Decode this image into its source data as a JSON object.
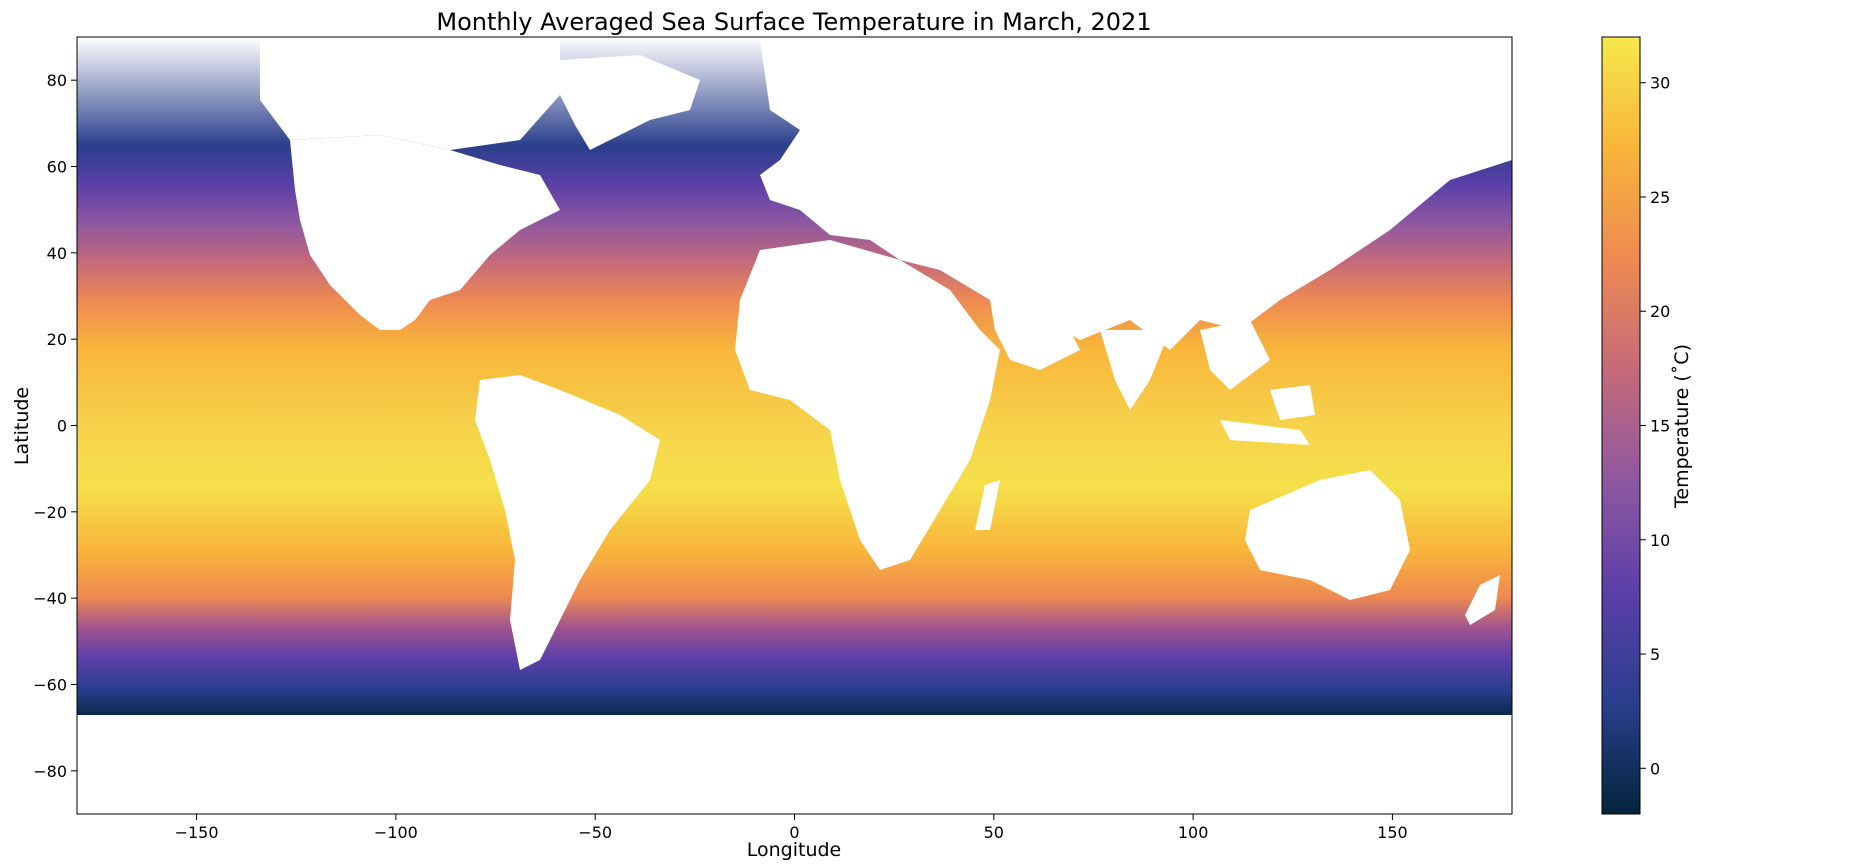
{
  "chart_data": {
    "type": "heatmap",
    "title": "Monthly Averaged Sea Surface Temperature in March, 2021",
    "xlabel": "Longitude",
    "ylabel": "Latitude",
    "xlim": [
      -180,
      180
    ],
    "ylim": [
      -90,
      90
    ],
    "x_ticks": [
      -150,
      -100,
      -50,
      0,
      50,
      100,
      150
    ],
    "x_tick_labels": [
      "−150",
      "−100",
      "−50",
      "0",
      "50",
      "100",
      "150"
    ],
    "y_ticks": [
      80,
      60,
      40,
      20,
      0,
      -20,
      -40,
      -60,
      -80
    ],
    "y_tick_labels": [
      "80",
      "60",
      "40",
      "20",
      "0",
      "−20",
      "−40",
      "−60",
      "−80"
    ],
    "colorbar": {
      "label": "Temperature (˚C)",
      "range": [
        -2,
        32
      ],
      "ticks": [
        0,
        5,
        10,
        15,
        20,
        25,
        30
      ],
      "tick_labels": [
        "0",
        "5",
        "10",
        "15",
        "20",
        "25",
        "30"
      ],
      "colors": [
        "#03243c",
        "#2a3f8c",
        "#5b3fa8",
        "#8e58a0",
        "#c46a7a",
        "#ee8a52",
        "#f8b53a",
        "#f5e84c"
      ]
    },
    "grid": false,
    "colormap": "thermal",
    "land_color": "#ffffff"
  }
}
